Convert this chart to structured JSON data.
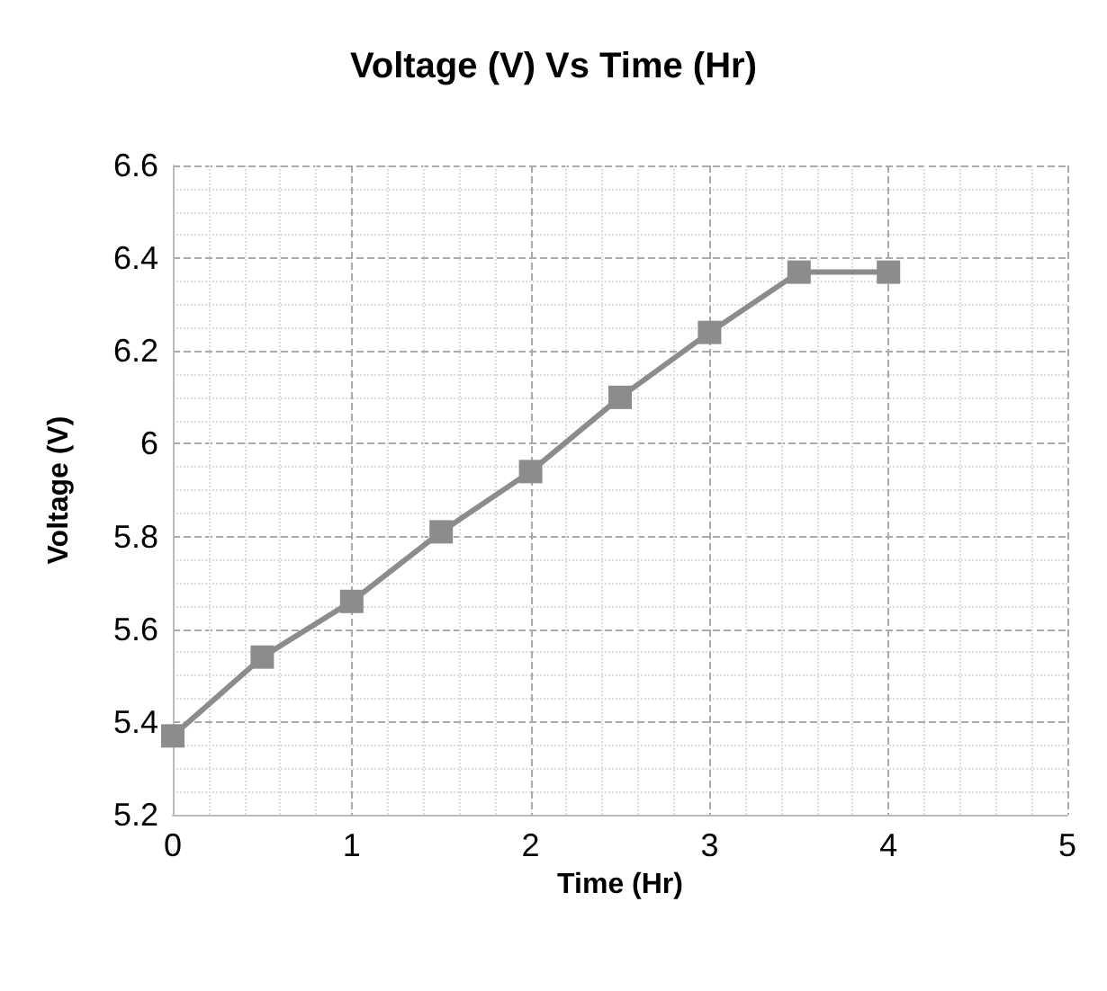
{
  "chart_data": {
    "type": "line",
    "title": "Voltage (V) Vs Time (Hr)",
    "xlabel": "Time (Hr)",
    "ylabel": "Voltage (V)",
    "series": [
      {
        "color": "#8c8c8c",
        "x": [
          0,
          0.5,
          1,
          1.5,
          2,
          2.5,
          3,
          3.5,
          4
        ],
        "values": [
          5.37,
          5.54,
          5.66,
          5.81,
          5.94,
          6.1,
          6.24,
          6.37,
          6.37
        ]
      }
    ],
    "xlim": [
      0,
      5
    ],
    "xticks": [
      0,
      1,
      2,
      3,
      4,
      5
    ],
    "ylim": [
      5.2,
      6.6
    ],
    "yticks": [
      {
        "value": 5.2,
        "label": "5.2"
      },
      {
        "value": 5.4,
        "label": "5.4"
      },
      {
        "value": 5.6,
        "label": "5.6"
      },
      {
        "value": 5.8,
        "label": "5.8"
      },
      {
        "value": 6,
        "label": "6"
      },
      {
        "value": 6.2,
        "label": "6.2"
      },
      {
        "value": 6.4,
        "label": "6.4"
      },
      {
        "value": 6.6,
        "label": "6.6"
      }
    ],
    "grid": true,
    "marker": "square",
    "line_style": "solid"
  }
}
